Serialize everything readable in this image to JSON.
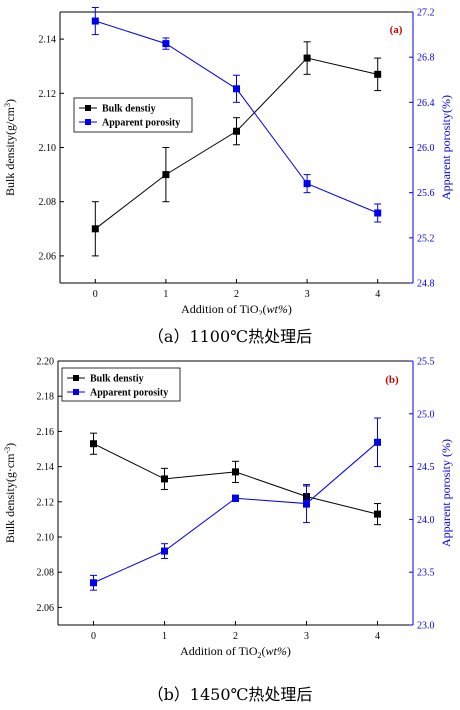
{
  "chart_data": [
    {
      "type": "line",
      "panel_tag": "(a)",
      "caption": "（a）1100℃热处理后",
      "xlabel_prefix": "Addition of TiO",
      "xlabel_sub": "2",
      "xlabel_paren_open": "(",
      "xlabel_italic": "wt%",
      "xlabel_paren_close": ")",
      "ylabel_left": "Bulk density(g/cm",
      "ylabel_left_sup": "3",
      "ylabel_left_close": ")",
      "ylabel_right": "Apparent porosity(%)",
      "x": [
        0,
        1,
        2,
        3,
        4
      ],
      "x_ticks": [
        "0",
        "1",
        "2",
        "3",
        "4"
      ],
      "xlim": [
        -0.5,
        4.5
      ],
      "ylim_left": [
        2.05,
        2.15
      ],
      "ylim_right": [
        24.8,
        27.2
      ],
      "y_ticks_left": [
        "2.06",
        "2.08",
        "2.10",
        "2.12",
        "2.14"
      ],
      "y_ticks_right": [
        "24.8",
        "25.2",
        "25.6",
        "26.0",
        "26.4",
        "26.8",
        "27.2"
      ],
      "grid": false,
      "legend_position": "upper-left",
      "series": [
        {
          "name": "Bulk denstiy",
          "axis": "left",
          "color": "#000000",
          "values": [
            2.07,
            2.09,
            2.106,
            2.133,
            2.127
          ],
          "errors": [
            0.01,
            0.01,
            0.005,
            0.006,
            0.006
          ]
        },
        {
          "name": "Apparent porosity",
          "axis": "right",
          "color": "#0000ee",
          "values": [
            27.12,
            26.92,
            26.52,
            25.68,
            25.42
          ],
          "errors": [
            0.12,
            0.05,
            0.12,
            0.08,
            0.08
          ]
        }
      ]
    },
    {
      "type": "line",
      "panel_tag": "(b)",
      "caption": "（b）1450℃热处理后",
      "xlabel_prefix": "Addition of TiO",
      "xlabel_sub": "2",
      "xlabel_paren_open": "(",
      "xlabel_italic": "wt%",
      "xlabel_paren_close": ")",
      "ylabel_left": "Bulk density(g·cm",
      "ylabel_left_sup": "-3",
      "ylabel_left_close": ")",
      "ylabel_right": "Apparent porosity (%)",
      "x": [
        0,
        1,
        2,
        3,
        4
      ],
      "x_ticks": [
        "0",
        "1",
        "2",
        "3",
        "4"
      ],
      "xlim": [
        -0.5,
        4.5
      ],
      "ylim_left": [
        2.05,
        2.2
      ],
      "ylim_right": [
        23.0,
        25.5
      ],
      "y_ticks_left": [
        "2.06",
        "2.08",
        "2.10",
        "2.12",
        "2.14",
        "2.16",
        "2.18",
        "2.20"
      ],
      "y_ticks_right": [
        "23.0",
        "23.5",
        "24.0",
        "24.5",
        "25.0",
        "25.5"
      ],
      "grid": false,
      "legend_position": "upper-left",
      "series": [
        {
          "name": "Bulk denstiy",
          "axis": "left",
          "color": "#000000",
          "values": [
            2.153,
            2.133,
            2.137,
            2.123,
            2.113
          ],
          "errors": [
            0.006,
            0.006,
            0.006,
            0.006,
            0.006
          ]
        },
        {
          "name": "Apparent porosity",
          "axis": "right",
          "color": "#0000ee",
          "values": [
            23.4,
            23.7,
            24.2,
            24.15,
            24.73
          ],
          "errors": [
            0.07,
            0.07,
            0.03,
            0.18,
            0.23
          ]
        }
      ]
    }
  ]
}
